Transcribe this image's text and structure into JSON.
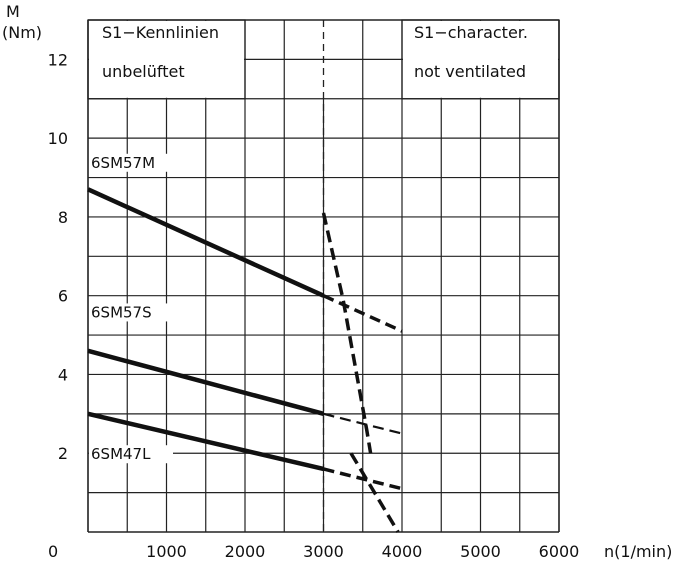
{
  "chart_data": {
    "type": "line",
    "x": {
      "label": "n(1/min)",
      "min": 0,
      "max": 6000,
      "ticks": [
        0,
        1000,
        2000,
        3000,
        4000,
        5000,
        6000
      ]
    },
    "y": {
      "label_line1": "M",
      "label_line2": "(Nm)",
      "min": 0,
      "max": 13,
      "ticks": [
        2,
        4,
        6,
        8,
        10,
        12
      ]
    },
    "grid": true,
    "reference_line_x": 3000,
    "boxes": {
      "left_line1": "S1−Kennlinien",
      "left_line2": "unbelüftet",
      "right_line1": "S1−character.",
      "right_line2": "not  ventilated"
    },
    "series": [
      {
        "name": "6SM57M",
        "solid": [
          [
            0,
            8.7
          ],
          [
            3000,
            6.0
          ]
        ],
        "dashed": [
          [
            3000,
            6.0
          ],
          [
            4000,
            5.1
          ]
        ]
      },
      {
        "name": "6SM57S",
        "solid": [
          [
            0,
            4.6
          ],
          [
            3000,
            3.0
          ]
        ],
        "dashed": [
          [
            3000,
            3.0
          ],
          [
            4000,
            2.5
          ]
        ]
      },
      {
        "name": "6SM47L",
        "solid": [
          [
            0,
            3.0
          ],
          [
            3000,
            1.6
          ]
        ],
        "dashed": [
          [
            3000,
            1.6
          ],
          [
            4000,
            1.1
          ]
        ]
      }
    ],
    "limit_curves": [
      [
        [
          3000,
          8.1
        ],
        [
          3250,
          5.9
        ],
        [
          3550,
          2.6
        ],
        [
          3600,
          2.0
        ]
      ],
      [
        [
          3350,
          2.0
        ],
        [
          3650,
          1.0
        ],
        [
          3950,
          0
        ]
      ]
    ]
  }
}
